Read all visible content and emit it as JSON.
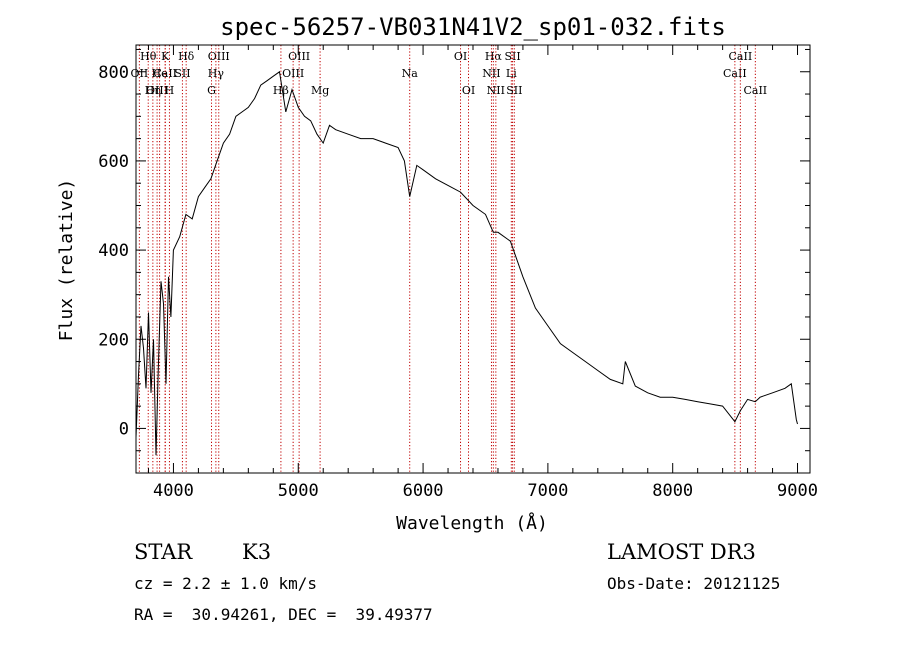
{
  "chart_data": {
    "type": "line",
    "title": "spec-56257-VB031N41V2_sp01-032.fits",
    "xlabel": "Wavelength (Å)",
    "ylabel": "Flux (relative)",
    "xlim": [
      3700,
      9100
    ],
    "ylim": [
      -100,
      860
    ],
    "x_ticks": [
      4000,
      5000,
      6000,
      7000,
      8000,
      9000
    ],
    "y_ticks": [
      0,
      200,
      400,
      600,
      800
    ],
    "grid": false,
    "series": [
      {
        "name": "flux",
        "x": [
          3700,
          3720,
          3740,
          3760,
          3780,
          3800,
          3820,
          3840,
          3860,
          3880,
          3900,
          3920,
          3940,
          3960,
          3980,
          4000,
          4050,
          4100,
          4150,
          4200,
          4250,
          4300,
          4350,
          4400,
          4450,
          4500,
          4550,
          4600,
          4650,
          4700,
          4750,
          4800,
          4850,
          4900,
          4950,
          5000,
          5050,
          5100,
          5150,
          5200,
          5250,
          5300,
          5400,
          5500,
          5600,
          5700,
          5800,
          5850,
          5893,
          5950,
          6000,
          6100,
          6200,
          6300,
          6400,
          6500,
          6563,
          6600,
          6700,
          6800,
          6900,
          7000,
          7100,
          7200,
          7300,
          7400,
          7500,
          7600,
          7620,
          7700,
          7800,
          7900,
          8000,
          8100,
          8200,
          8300,
          8400,
          8498,
          8542,
          8600,
          8662,
          8700,
          8800,
          8900,
          8950,
          8990,
          9000
        ],
        "y": [
          -20,
          120,
          230,
          180,
          90,
          260,
          80,
          200,
          -60,
          150,
          330,
          280,
          100,
          340,
          250,
          400,
          430,
          480,
          470,
          520,
          540,
          560,
          600,
          640,
          660,
          700,
          710,
          720,
          740,
          770,
          780,
          790,
          800,
          710,
          760,
          720,
          700,
          690,
          660,
          640,
          680,
          670,
          660,
          650,
          650,
          640,
          630,
          600,
          520,
          590,
          580,
          560,
          545,
          530,
          500,
          480,
          440,
          440,
          420,
          340,
          270,
          230,
          190,
          170,
          150,
          130,
          110,
          100,
          150,
          95,
          80,
          70,
          70,
          65,
          60,
          55,
          50,
          15,
          40,
          65,
          60,
          70,
          80,
          90,
          100,
          20,
          10
        ]
      }
    ],
    "lines": [
      {
        "label": "Hθ",
        "x": 3798,
        "row": 0
      },
      {
        "label": "OII",
        "x": 3727,
        "row": 1
      },
      {
        "label": "CaII",
        "x": 3934,
        "row": 1
      },
      {
        "label": "OIII",
        "x": 3869,
        "row": 2
      },
      {
        "label": "Hη",
        "x": 3835,
        "row": 2
      },
      {
        "label": "He",
        "x": 3889,
        "row": 1
      },
      {
        "label": "K",
        "x": 3934,
        "row": 0
      },
      {
        "label": "H",
        "x": 3968,
        "row": 2
      },
      {
        "label": "SII",
        "x": 4072,
        "row": 1
      },
      {
        "label": "Hδ",
        "x": 4102,
        "row": 0
      },
      {
        "label": "OIII",
        "x": 4363,
        "row": 0
      },
      {
        "label": "Hγ",
        "x": 4340,
        "row": 1
      },
      {
        "label": "G",
        "x": 4305,
        "row": 2
      },
      {
        "label": "Hβ",
        "x": 4861,
        "row": 2
      },
      {
        "label": "OIII",
        "x": 4959,
        "row": 1
      },
      {
        "label": "OIII",
        "x": 5007,
        "row": 0
      },
      {
        "label": "Mg",
        "x": 5175,
        "row": 2
      },
      {
        "label": "Na",
        "x": 5893,
        "row": 1
      },
      {
        "label": "OI",
        "x": 6300,
        "row": 0
      },
      {
        "label": "OI",
        "x": 6364,
        "row": 2
      },
      {
        "label": "Hα",
        "x": 6563,
        "row": 0
      },
      {
        "label": "NII",
        "x": 6548,
        "row": 1
      },
      {
        "label": "NII",
        "x": 6583,
        "row": 2
      },
      {
        "label": "SII",
        "x": 6717,
        "row": 0
      },
      {
        "label": "Li",
        "x": 6707,
        "row": 1
      },
      {
        "label": "SII",
        "x": 6731,
        "row": 2
      },
      {
        "label": "CaII",
        "x": 8498,
        "row": 1
      },
      {
        "label": "CaII",
        "x": 8542,
        "row": 0
      },
      {
        "label": "CaII",
        "x": 8662,
        "row": 2
      }
    ]
  },
  "info": {
    "object_class": "STAR",
    "subclass": "K3",
    "redshift": "cz = 2.2 ± 1.0 km/s",
    "coords": "RA =  30.94261, DEC =  39.49377",
    "survey": "LAMOST DR3",
    "obs_date": "Obs-Date: 20121125"
  }
}
